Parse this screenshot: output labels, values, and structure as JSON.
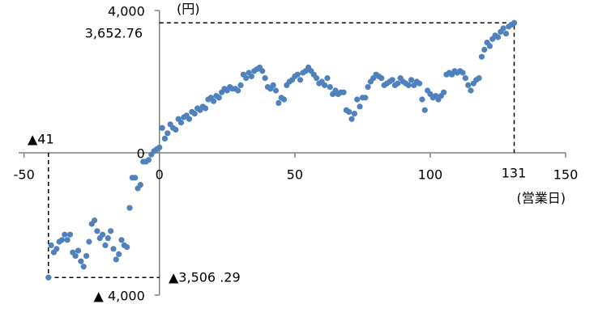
{
  "chart_data": {
    "type": "scatter",
    "y_unit": "(円)",
    "x_unit": "(営業日)",
    "annotations": [
      "3,652.76",
      "▲41",
      "▲3,506 .29",
      "131"
    ],
    "color": "#4f81bd",
    "x": [
      -41,
      -40,
      -39,
      -38,
      -37,
      -36,
      -35,
      -34,
      -33,
      -32,
      -31,
      -30,
      -29,
      -28,
      -27,
      -26,
      -25,
      -24,
      -23,
      -22,
      -21,
      -20,
      -19,
      -18,
      -17,
      -16,
      -15,
      -14,
      -13,
      -12,
      -11,
      -10,
      -9,
      -8,
      -7,
      -6,
      -5,
      -4,
      -3,
      -2,
      -1,
      0,
      1,
      2,
      3,
      4,
      5,
      6,
      7,
      8,
      9,
      10,
      11,
      12,
      13,
      14,
      15,
      16,
      17,
      18,
      19,
      20,
      21,
      22,
      23,
      24,
      25,
      26,
      27,
      28,
      29,
      30,
      31,
      32,
      33,
      34,
      35,
      36,
      37,
      38,
      39,
      40,
      41,
      42,
      43,
      44,
      45,
      46,
      47,
      48,
      49,
      50,
      51,
      52,
      53,
      54,
      55,
      56,
      57,
      58,
      59,
      60,
      61,
      62,
      63,
      64,
      65,
      66,
      67,
      68,
      69,
      70,
      71,
      72,
      73,
      74,
      75,
      76,
      77,
      78,
      79,
      80,
      81,
      82,
      83,
      84,
      85,
      86,
      87,
      88,
      89,
      90,
      91,
      92,
      93,
      94,
      95,
      96,
      97,
      98,
      99,
      100,
      101,
      102,
      103,
      104,
      105,
      106,
      107,
      108,
      109,
      110,
      111,
      112,
      113,
      114,
      115,
      116,
      117,
      118,
      119,
      120,
      121,
      122,
      123,
      124,
      125,
      126,
      127,
      128,
      129,
      130,
      131
    ],
    "values": [
      -3506.29,
      -2600,
      -2800,
      -2700,
      -2500,
      -2450,
      -2300,
      -2450,
      -2300,
      -2800,
      -2900,
      -2750,
      -3050,
      -3200,
      -2900,
      -2500,
      -2000,
      -1900,
      -2200,
      -2400,
      -2300,
      -2600,
      -2400,
      -2200,
      -2700,
      -3000,
      -2850,
      -2450,
      -2600,
      -2650,
      -1550,
      -700,
      -700,
      -1000,
      -900,
      -250,
      -250,
      -200,
      -50,
      50,
      100,
      150,
      700,
      400,
      550,
      800,
      700,
      650,
      950,
      850,
      1000,
      1050,
      950,
      1150,
      1100,
      1250,
      1200,
      1300,
      1250,
      1500,
      1550,
      1450,
      1600,
      1550,
      1700,
      1800,
      1750,
      1850,
      1800,
      1800,
      1750,
      1900,
      2200,
      2100,
      2250,
      2150,
      2300,
      2350,
      2400,
      2300,
      2100,
      1850,
      1800,
      1900,
      1750,
      1400,
      1550,
      1500,
      1900,
      2000,
      2050,
      2150,
      2200,
      2050,
      2250,
      2300,
      2400,
      2300,
      2200,
      2100,
      1950,
      2000,
      1900,
      2100,
      1850,
      1650,
      1750,
      1650,
      1700,
      1700,
      1200,
      1150,
      950,
      1100,
      1500,
      1300,
      1550,
      1550,
      1850,
      2000,
      2100,
      2200,
      2150,
      2100,
      1900,
      1950,
      2000,
      2050,
      1900,
      1950,
      2100,
      2000,
      1950,
      1900,
      2050,
      1900,
      2000,
      1950,
      1500,
      1200,
      1750,
      1650,
      1550,
      1600,
      1500,
      1600,
      1700,
      2200,
      2250,
      2200,
      2300,
      2250,
      2300,
      2250,
      2100,
      1900,
      1750,
      1950,
      2050,
      2100,
      2700,
      2900,
      3100,
      3000,
      3200,
      3300,
      3250,
      3400,
      3500,
      3350,
      3550,
      3600,
      3652.76
    ],
    "xlim": [
      -52,
      150
    ],
    "xticks": [
      -50,
      0,
      50,
      100,
      150
    ],
    "ylim": [
      -4000,
      4000
    ],
    "yticks": [
      {
        "value": 4000,
        "label": "4,000"
      },
      0,
      {
        "value": -4000,
        "label": "▲ 4,000"
      }
    ],
    "grid": false
  }
}
